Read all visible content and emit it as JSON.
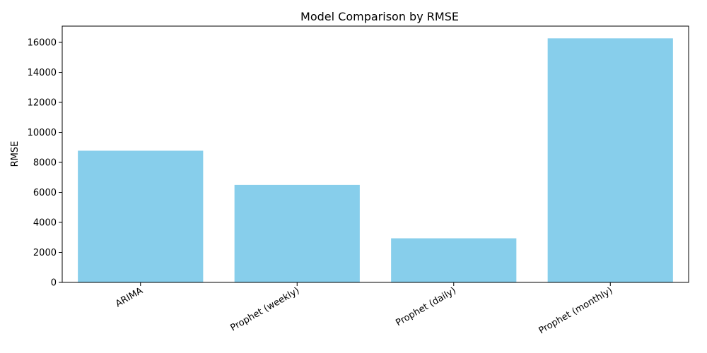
{
  "chart_data": {
    "type": "bar",
    "title": "Model Comparison by RMSE",
    "xlabel": "",
    "ylabel": "RMSE",
    "categories": [
      "ARIMA",
      "Prophet (weekly)",
      "Prophet (daily)",
      "Prophet (monthly)"
    ],
    "values": [
      8780,
      6500,
      2940,
      16270
    ],
    "ylim": [
      0,
      17085
    ],
    "yticks": [
      0,
      2000,
      4000,
      6000,
      8000,
      10000,
      12000,
      14000,
      16000
    ],
    "ytick_labels": [
      "0",
      "2000",
      "4000",
      "6000",
      "8000",
      "10000",
      "12000",
      "14000",
      "16000"
    ],
    "grid": false,
    "legend": "none",
    "bar_color": "#87CEEB",
    "xtick_rotation": "30-degree, right-aligned"
  }
}
